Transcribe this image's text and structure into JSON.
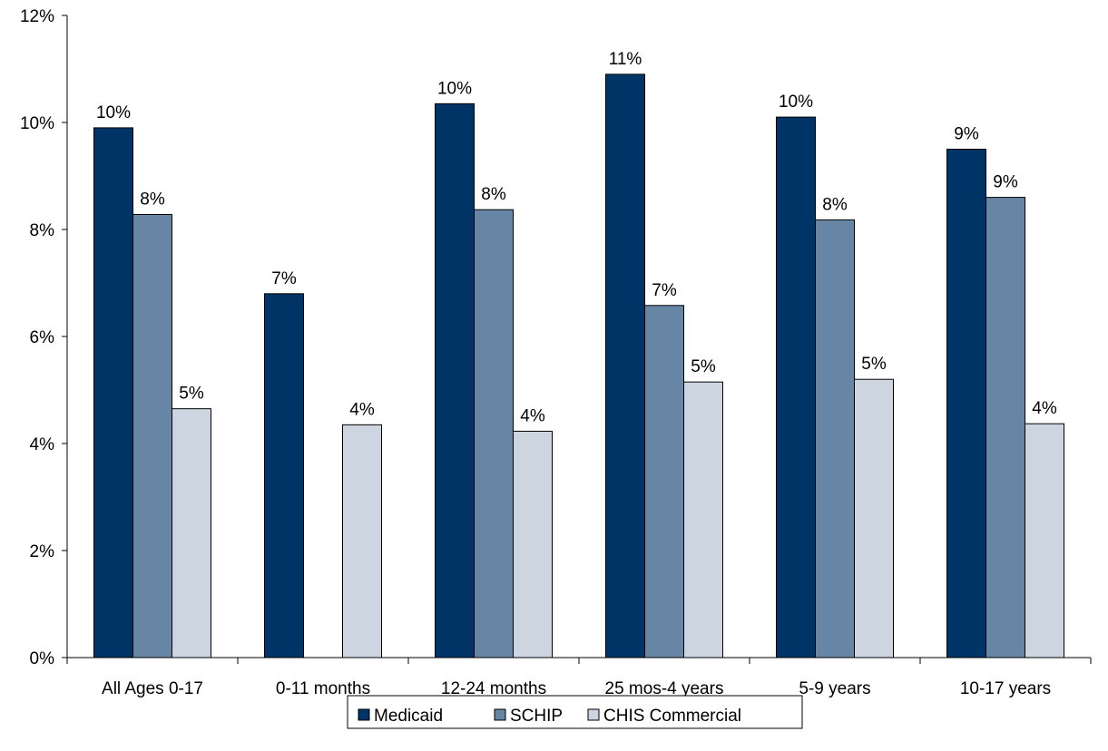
{
  "chart_data": {
    "type": "bar",
    "categories": [
      "All Ages 0-17",
      "0-11 months",
      "12-24 months",
      "25 mos-4 years",
      "5-9 years",
      "10-17 years"
    ],
    "series": [
      {
        "name": "Medicaid",
        "color": "#003366",
        "values": [
          9.9,
          6.8,
          10.35,
          10.9,
          10.1,
          9.5
        ],
        "labels": [
          "10%",
          "7%",
          "10%",
          "11%",
          "10%",
          "9%"
        ]
      },
      {
        "name": "SCHIP",
        "color": "#6785A5",
        "values": [
          8.28,
          null,
          8.37,
          6.58,
          8.18,
          8.6
        ],
        "labels": [
          "8%",
          "",
          "8%",
          "7%",
          "8%",
          "9%"
        ]
      },
      {
        "name": "CHIS Commercial",
        "color": "#CDD6E0",
        "values": [
          4.65,
          4.35,
          4.23,
          5.15,
          5.2,
          4.37
        ],
        "labels": [
          "5%",
          "4%",
          "4%",
          "5%",
          "5%",
          "4%"
        ]
      }
    ],
    "ylim": [
      0,
      12
    ],
    "yticks": [
      0,
      2,
      4,
      6,
      8,
      10,
      12
    ],
    "ytick_labels": [
      "0%",
      "2%",
      "4%",
      "6%",
      "8%",
      "10%",
      "12%"
    ],
    "title": "",
    "xlabel": "",
    "ylabel": "",
    "grid": false,
    "legend_position": "bottom"
  }
}
